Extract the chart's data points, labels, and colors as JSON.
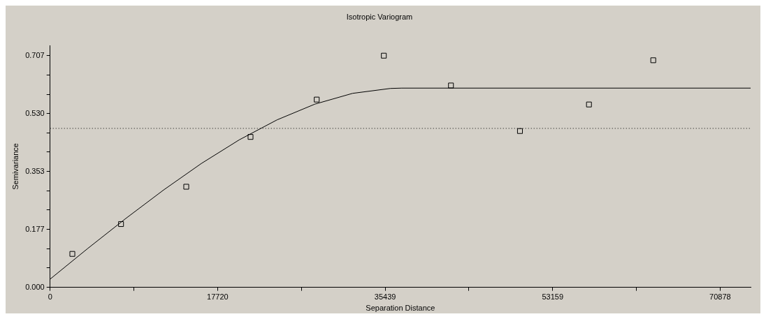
{
  "chart_data": {
    "type": "scatter",
    "title": "Isotropic Variogram",
    "xlabel": "Separation Distance",
    "ylabel": "Semivariance",
    "xlim": [
      0,
      74100
    ],
    "ylim": [
      0,
      0.738
    ],
    "xticks": [
      0,
      {
        "value": 8860,
        "label": null
      },
      17720,
      {
        "value": 26580,
        "label": null
      },
      35439,
      {
        "value": 44300,
        "label": null
      },
      53159,
      {
        "value": 62020,
        "label": null
      },
      70878
    ],
    "yticks": [
      {
        "value": 0,
        "label": "0.000"
      },
      {
        "value": 0.059,
        "label": null
      },
      {
        "value": 0.118,
        "label": null
      },
      {
        "value": 0.177,
        "label": "0.177"
      },
      {
        "value": 0.236,
        "label": null
      },
      {
        "value": 0.295,
        "label": null
      },
      {
        "value": 0.353,
        "label": "0.353"
      },
      {
        "value": 0.413,
        "label": null
      },
      {
        "value": 0.471,
        "label": null
      },
      {
        "value": 0.53,
        "label": "0.530"
      },
      {
        "value": 0.589,
        "label": null
      },
      {
        "value": 0.648,
        "label": null
      },
      {
        "value": 0.707,
        "label": "0.707"
      }
    ],
    "grid": false,
    "legend": false,
    "series": [
      {
        "type": "scatter",
        "marker": "square",
        "color": "#000000",
        "x": [
          2350,
          7500,
          14400,
          21200,
          28200,
          35300,
          42400,
          49700,
          57000,
          63800
        ],
        "values": [
          0.102,
          0.193,
          0.307,
          0.459,
          0.573,
          0.707,
          0.616,
          0.477,
          0.558,
          0.693
        ]
      },
      {
        "type": "line",
        "marker": "none",
        "line_style": "solid",
        "color": "#000000",
        "x": [
          0,
          4000,
          8000,
          12000,
          16000,
          20000,
          24000,
          28000,
          32000,
          36000,
          37200,
          74100
        ],
        "values": [
          0.025,
          0.119,
          0.21,
          0.297,
          0.378,
          0.45,
          0.511,
          0.559,
          0.592,
          0.607,
          0.608,
          0.608
        ]
      }
    ],
    "ref_lines": [
      {
        "axis": "y",
        "value": 0.485,
        "line_style": "dotted",
        "color": "#000000"
      }
    ]
  }
}
